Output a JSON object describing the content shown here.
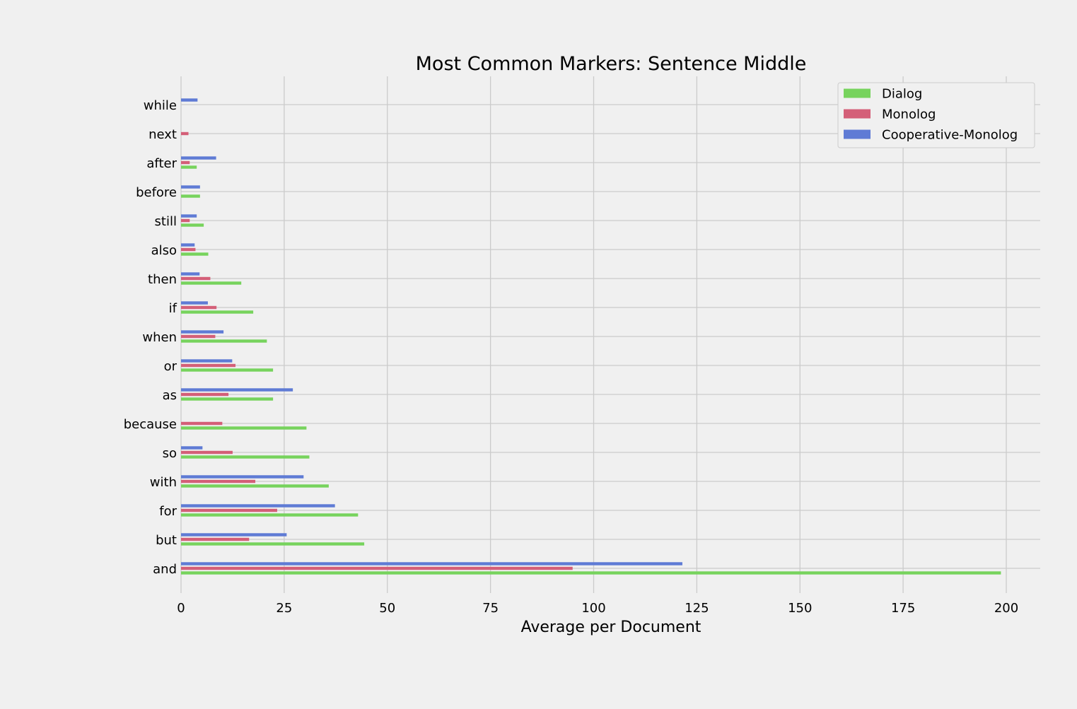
{
  "chart_data": {
    "type": "bar",
    "orientation": "horizontal",
    "title": "Most Common Markers: Sentence Middle",
    "xlabel": "Average per Document",
    "ylabel": "",
    "xlim": [
      0,
      208
    ],
    "xticks": [
      0,
      25,
      50,
      75,
      100,
      125,
      150,
      175,
      200
    ],
    "grid": true,
    "legend_position": "top-right",
    "categories": [
      "and",
      "but",
      "for",
      "with",
      "so",
      "because",
      "as",
      "or",
      "when",
      "if",
      "then",
      "also",
      "still",
      "before",
      "after",
      "next",
      "while"
    ],
    "series": [
      {
        "name": "Dialog",
        "color": "#77d35d",
        "values": [
          198.7,
          44.4,
          42.9,
          35.8,
          31.1,
          30.4,
          22.3,
          22.3,
          20.8,
          17.5,
          14.6,
          6.6,
          5.5,
          4.6,
          3.8,
          0,
          0
        ]
      },
      {
        "name": "Monolog",
        "color": "#d45f78",
        "values": [
          94.9,
          16.5,
          23.3,
          18.0,
          12.5,
          10.0,
          11.5,
          13.2,
          8.3,
          8.6,
          7.1,
          3.5,
          2.1,
          0,
          2.1,
          1.8,
          0
        ]
      },
      {
        "name": "Cooperative-Monolog",
        "color": "#5f7bd5",
        "values": [
          121.5,
          25.6,
          37.3,
          29.7,
          5.2,
          0,
          27.1,
          12.4,
          10.3,
          6.5,
          4.5,
          3.3,
          3.8,
          4.6,
          8.5,
          0,
          4.0
        ]
      }
    ]
  }
}
